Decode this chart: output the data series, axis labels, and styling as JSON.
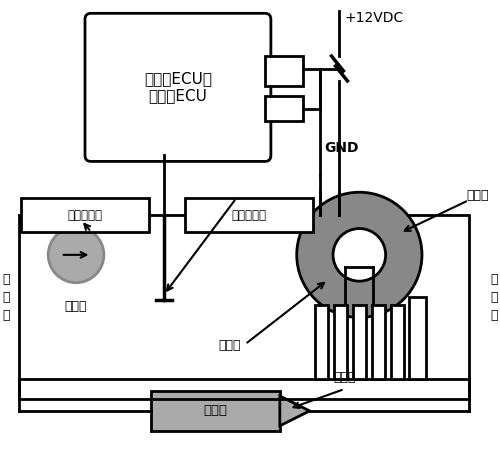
{
  "bg_color": "#ffffff",
  "line_color": "#000000",
  "gray_color": "#888888",
  "light_gray": "#aaaaaa",
  "box_fill": "#aaaaaa",
  "figsize": [
    5.0,
    4.63
  ],
  "dpi": 100,
  "ecu_label": "发动机ECU或\n电子扇ECU",
  "labels": {
    "plus12": "+12VDC",
    "gnd": "GND",
    "dianzi_fan": "电子扇",
    "compressor": "压缩机",
    "low_pipe": "低\n压\n管",
    "high_pipe": "高\n压\n管",
    "condenser": "冷凝器",
    "expansion": "膨胀阀",
    "evaporator": "蒸发器",
    "high_sensor": "高压传感器",
    "temp_sensor": "温度传感器"
  }
}
